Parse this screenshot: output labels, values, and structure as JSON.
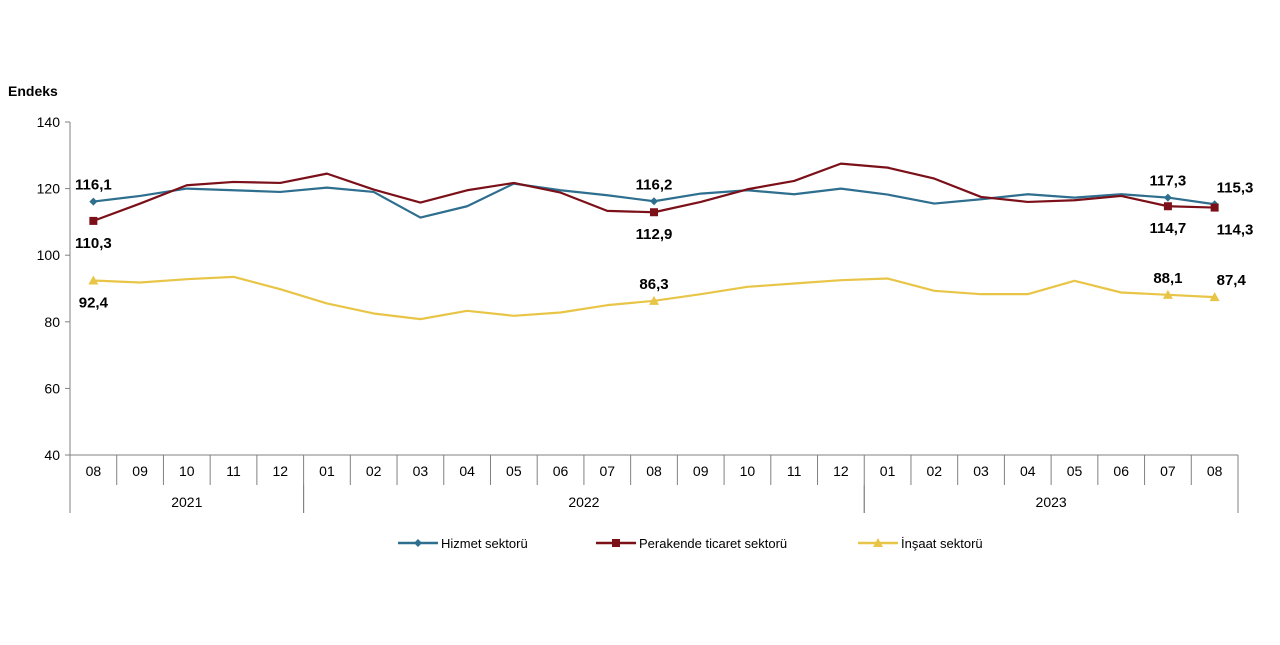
{
  "chart_data": {
    "type": "line",
    "ylabel": "Endeks",
    "ylim": [
      40,
      140
    ],
    "yticks": [
      40,
      60,
      80,
      100,
      120,
      140
    ],
    "grid": false,
    "legend_position": "bottom",
    "categories": [
      "08",
      "09",
      "10",
      "11",
      "12",
      "01",
      "02",
      "03",
      "04",
      "05",
      "06",
      "07",
      "08",
      "09",
      "10",
      "11",
      "12",
      "01",
      "02",
      "03",
      "04",
      "05",
      "06",
      "07",
      "08"
    ],
    "years": [
      {
        "label": "2021",
        "from": 0,
        "to": 4
      },
      {
        "label": "2022",
        "from": 5,
        "to": 16
      },
      {
        "label": "2023",
        "from": 17,
        "to": 24
      }
    ],
    "series": [
      {
        "name": "Hizmet sektorü",
        "color": "#2e6e8e",
        "marker": "diamond",
        "values": [
          116.1,
          117.8,
          120.0,
          119.5,
          119.0,
          120.3,
          119.0,
          111.3,
          114.7,
          121.5,
          119.5,
          118.0,
          116.2,
          118.5,
          119.5,
          118.3,
          120.0,
          118.2,
          115.5,
          116.8,
          118.3,
          117.3,
          118.3,
          117.3,
          115.3
        ]
      },
      {
        "name": "Perakende ticaret sektorü",
        "color": "#7b1019",
        "marker": "square",
        "values": [
          110.3,
          115.5,
          121.0,
          122.0,
          121.7,
          124.5,
          119.7,
          115.8,
          119.5,
          121.7,
          118.8,
          113.3,
          112.9,
          116.0,
          119.8,
          122.3,
          127.5,
          126.3,
          123.0,
          117.5,
          116.0,
          116.5,
          117.8,
          114.7,
          114.3
        ]
      },
      {
        "name": "İnşaat sektorü",
        "color": "#e8c547",
        "marker": "triangle",
        "values": [
          92.4,
          91.8,
          92.8,
          93.5,
          89.8,
          85.5,
          82.5,
          80.8,
          83.3,
          81.8,
          82.8,
          85.0,
          86.3,
          88.3,
          90.5,
          91.5,
          92.5,
          93.0,
          89.3,
          88.3,
          88.3,
          92.3,
          88.8,
          88.1,
          87.4
        ]
      }
    ],
    "marked_points": [
      0,
      12,
      23,
      24
    ],
    "data_labels": [
      {
        "series": 0,
        "index": 0,
        "text": "116,1",
        "position": "above"
      },
      {
        "series": 1,
        "index": 0,
        "text": "110,3",
        "position": "below"
      },
      {
        "series": 2,
        "index": 0,
        "text": "92,4",
        "position": "below"
      },
      {
        "series": 0,
        "index": 12,
        "text": "116,2",
        "position": "above"
      },
      {
        "series": 1,
        "index": 12,
        "text": "112,9",
        "position": "below"
      },
      {
        "series": 2,
        "index": 12,
        "text": "86,3",
        "position": "above"
      },
      {
        "series": 0,
        "index": 23,
        "text": "117,3",
        "position": "above"
      },
      {
        "series": 1,
        "index": 23,
        "text": "114,7",
        "position": "below"
      },
      {
        "series": 2,
        "index": 23,
        "text": "88,1",
        "position": "above"
      },
      {
        "series": 0,
        "index": 24,
        "text": "115,3",
        "position": "above-right"
      },
      {
        "series": 1,
        "index": 24,
        "text": "114,3",
        "position": "below-right"
      },
      {
        "series": 2,
        "index": 24,
        "text": "87,4",
        "position": "above-right"
      }
    ]
  }
}
